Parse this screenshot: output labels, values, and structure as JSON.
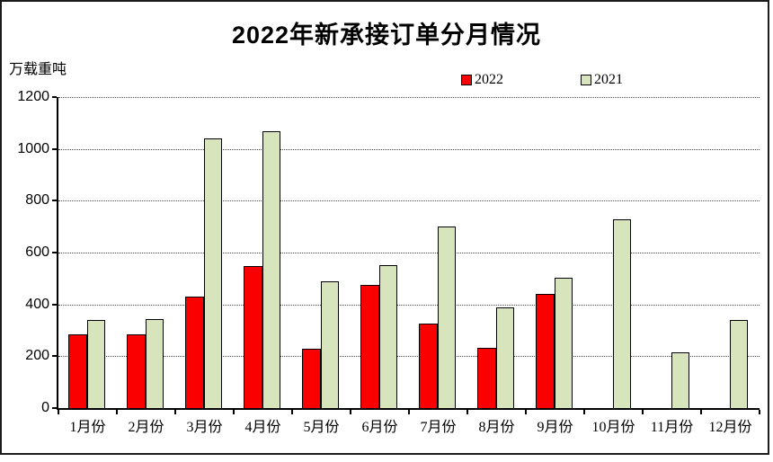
{
  "title": "2022年新承接订单分月情况",
  "y_unit_label": "万载重吨",
  "colors": {
    "series_2022": "#fb0000",
    "series_2021": "#d8e4bc",
    "bar_border": "#000000",
    "gridline": "#4a4a4a",
    "frame_border": "#1b1b1b"
  },
  "chart_data": {
    "type": "bar",
    "title": "2022年新承接订单分月情况",
    "ylabel": "万载重吨",
    "xlabel": "",
    "categories": [
      "1月份",
      "2月份",
      "3月份",
      "4月份",
      "5月份",
      "6月份",
      "7月份",
      "8月份",
      "9月份",
      "10月份",
      "11月份",
      "12月份"
    ],
    "series": [
      {
        "name": "2022",
        "color": "#fb0000",
        "values": [
          285,
          285,
          430,
          548,
          228,
          476,
          327,
          232,
          440,
          null,
          null,
          null
        ]
      },
      {
        "name": "2021",
        "color": "#d8e4bc",
        "values": [
          340,
          344,
          1040,
          1068,
          488,
          551,
          700,
          390,
          503,
          730,
          216,
          340
        ]
      }
    ],
    "ylim": [
      0,
      1200
    ],
    "yticks": [
      0,
      200,
      400,
      600,
      800,
      1000,
      1200
    ],
    "grid": "horizontal-dotted",
    "legend_position": "top-center"
  }
}
